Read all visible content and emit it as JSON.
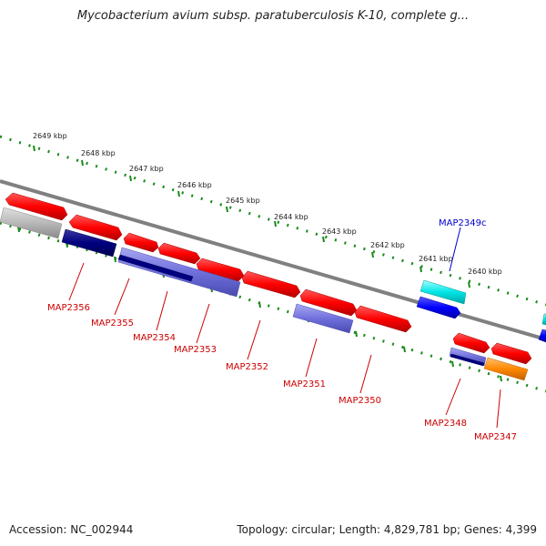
{
  "title": "Mycobacterium avium subsp. paratuberculosis K-10, complete g...",
  "footer": {
    "accession": "Accession: NC_002944",
    "topology": "Topology: circular; Length: 4,829,781 bp; Genes: 4,399"
  },
  "scale_labels": [
    "2649 kbp",
    "2648 kbp",
    "2647 kbp",
    "2646 kbp",
    "2645 kbp",
    "2644 kbp",
    "2643 kbp",
    "2642 kbp",
    "2641 kbp",
    "2640 kbp"
  ],
  "gene_labels": [
    {
      "name": "MAP2349c",
      "color": "#0000cc"
    },
    {
      "name": "MAP2356",
      "color": "#cc0000"
    },
    {
      "name": "MAP2355",
      "color": "#cc0000"
    },
    {
      "name": "MAP2354",
      "color": "#cc0000"
    },
    {
      "name": "MAP2353",
      "color": "#cc0000"
    },
    {
      "name": "MAP2352",
      "color": "#cc0000"
    },
    {
      "name": "MAP2351",
      "color": "#cc0000"
    },
    {
      "name": "MAP2350",
      "color": "#cc0000"
    },
    {
      "name": "MAP2348",
      "color": "#cc0000"
    },
    {
      "name": "MAP2347",
      "color": "#cc0000"
    }
  ],
  "colors": {
    "backbone": "#808080",
    "ticks": "#1a8a1a",
    "red_gene": "#ff0000",
    "blue_gene": "#0000ff",
    "navy_gene": "#000080",
    "slate_gene": "#7070dd",
    "cyan_gene": "#00e5e5",
    "gray_gene": "#b8b8b8",
    "orange_gene": "#ff8800"
  }
}
